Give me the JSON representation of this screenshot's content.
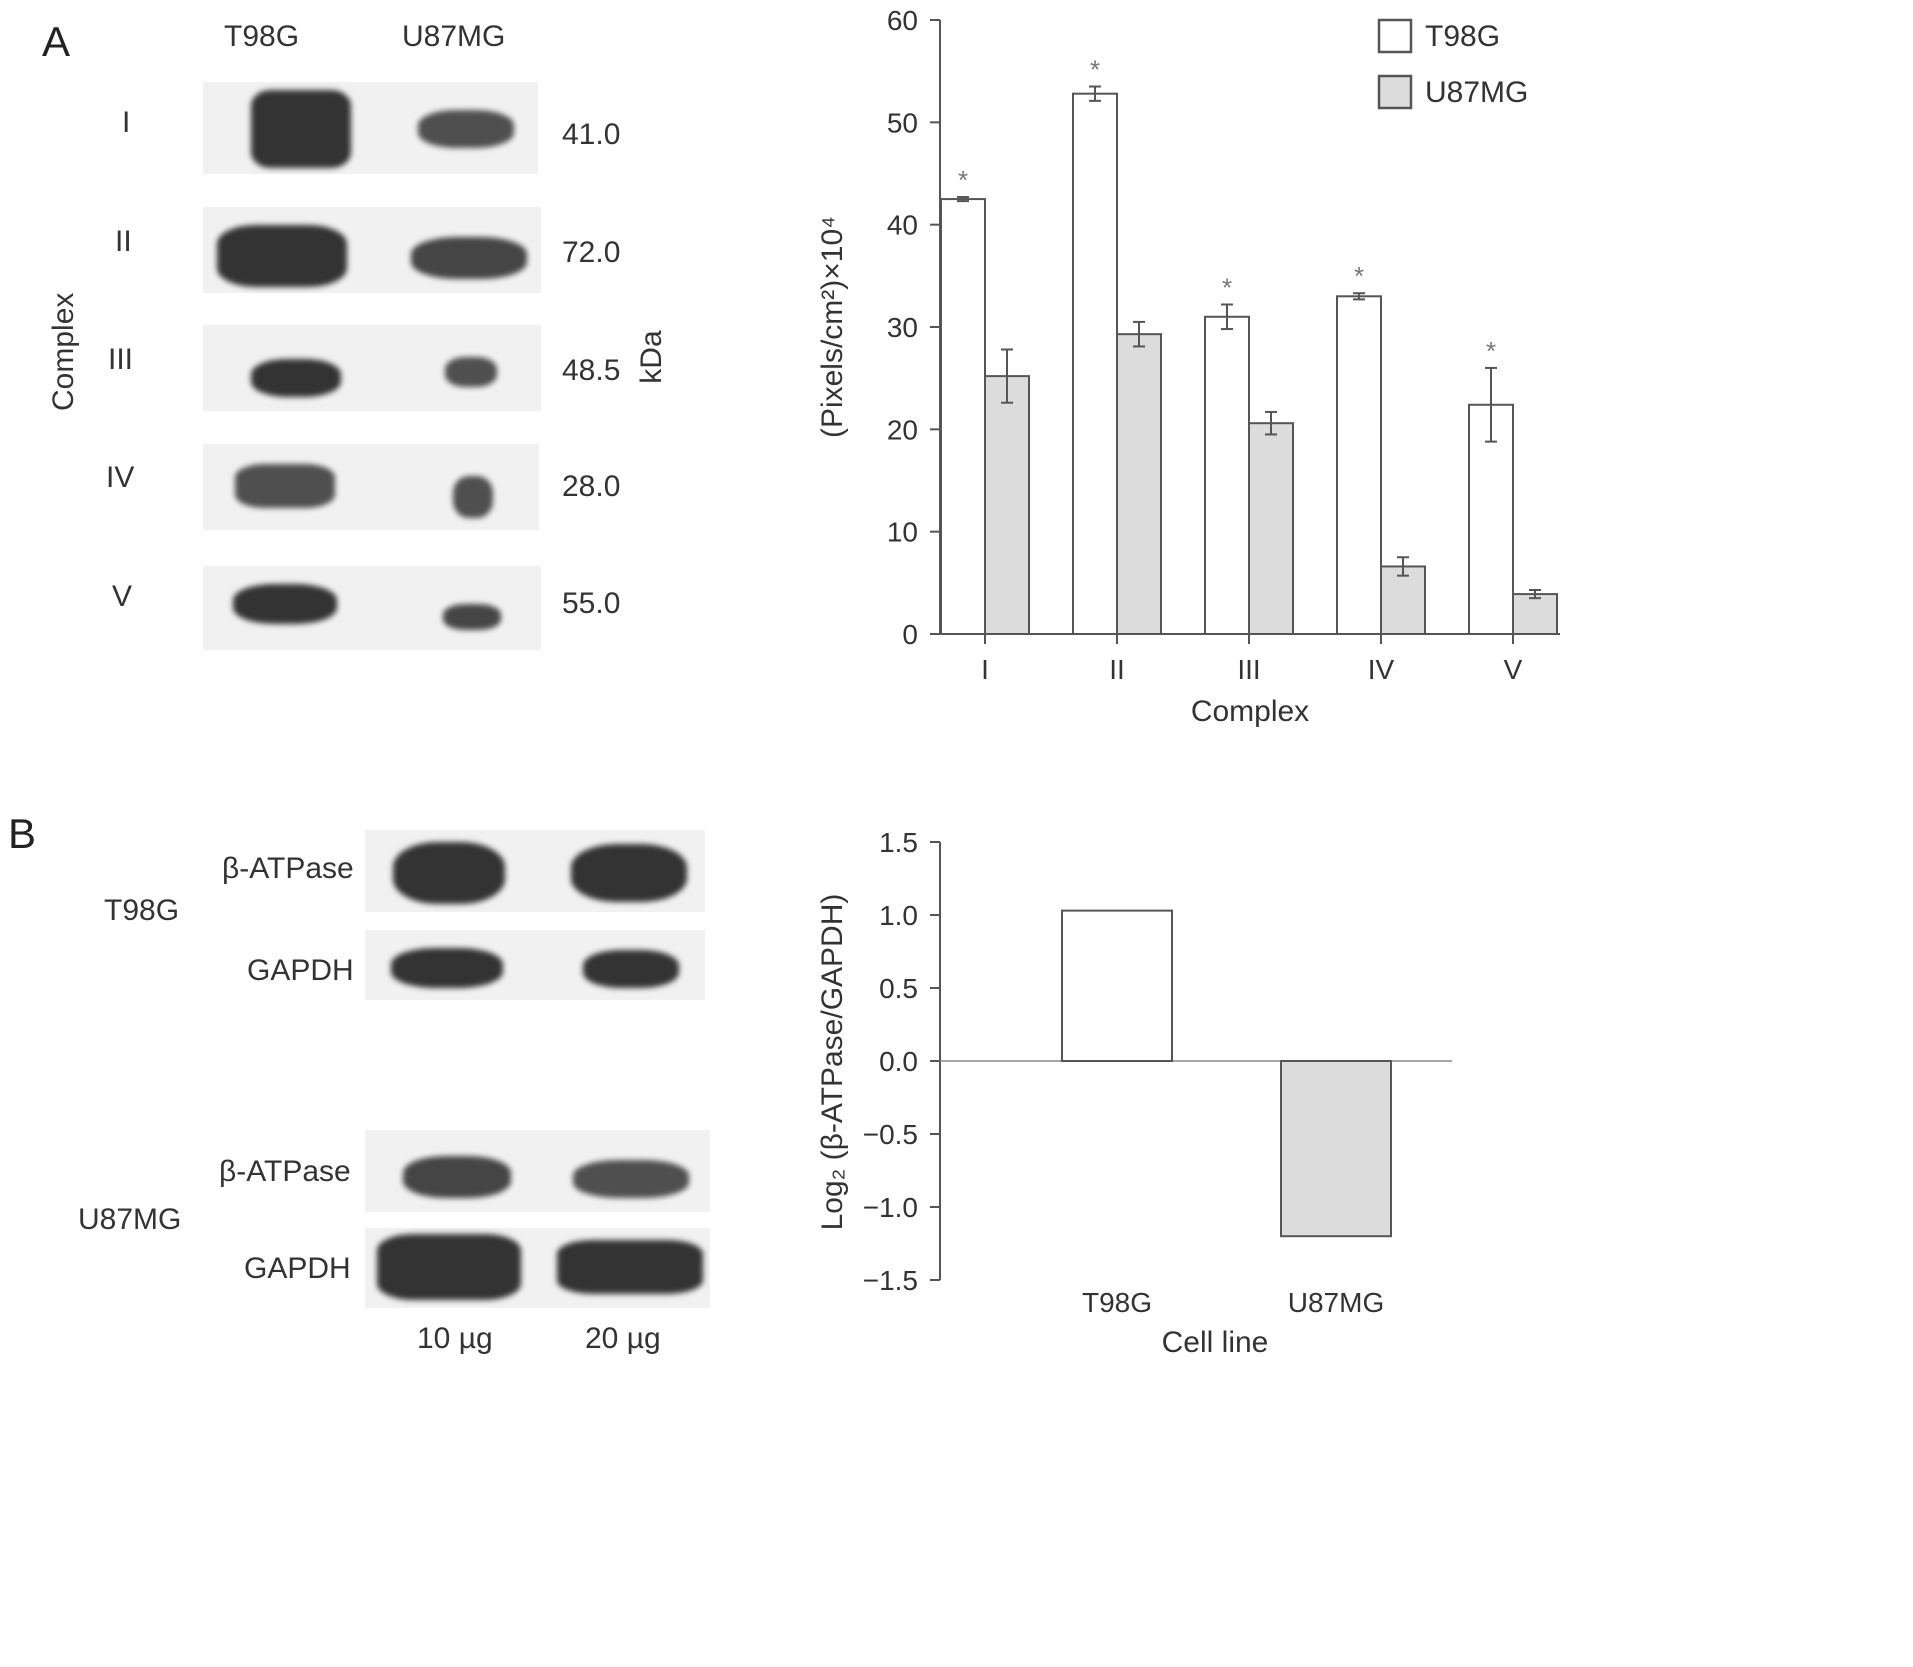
{
  "panels": {
    "a": "A",
    "b": "B"
  },
  "blot_a": {
    "columns": [
      "T98G",
      "U87MG"
    ],
    "rows": [
      "I",
      "II",
      "III",
      "IV",
      "V"
    ],
    "kda_values": [
      "41.0",
      "72.0",
      "48.5",
      "28.0",
      "55.0"
    ],
    "ylabel": "Complex",
    "unit": "kDa"
  },
  "blot_b": {
    "groups": [
      {
        "cell": "T98G",
        "bands": [
          "β-ATPase",
          "GAPDH"
        ]
      },
      {
        "cell": "U87MG",
        "bands": [
          "β-ATPase",
          "GAPDH"
        ]
      }
    ],
    "amounts": [
      "10 µg",
      "20 µg"
    ]
  },
  "chart_data": [
    {
      "type": "bar",
      "title": "",
      "categories": [
        "I",
        "II",
        "III",
        "IV",
        "V"
      ],
      "series": [
        {
          "name": "T98G",
          "values": [
            42.5,
            52.8,
            31.0,
            33.0,
            22.4
          ],
          "errors": [
            0.2,
            0.7,
            1.2,
            0.3,
            3.6
          ],
          "color": "#ffffff"
        },
        {
          "name": "U87MG",
          "values": [
            25.2,
            29.3,
            20.6,
            6.6,
            3.9
          ],
          "errors": [
            2.6,
            1.2,
            1.1,
            0.9,
            0.4
          ],
          "color": "#dcdcdc"
        }
      ],
      "significance": [
        "*",
        "*",
        "*",
        "*",
        "*"
      ],
      "xlabel": "Complex",
      "ylabel": "(Pixels/cm²)×10⁴",
      "ylim": [
        0,
        60
      ],
      "yticks": [
        "0",
        "10",
        "20",
        "30",
        "40",
        "50",
        "60"
      ],
      "legend": "top-right"
    },
    {
      "type": "bar",
      "title": "",
      "categories": [
        "T98G",
        "U87MG"
      ],
      "values": [
        1.03,
        -1.2
      ],
      "colors": [
        "#ffffff",
        "#dcdcdc"
      ],
      "xlabel": "Cell line",
      "ylabel": "Log₂ (β-ATPase/GAPDH)",
      "ylim": [
        -1.5,
        1.5
      ],
      "yticks": [
        "1.5",
        "1.0",
        "0.5",
        "0.0",
        "−0.5",
        "−1.0",
        "−1.5"
      ]
    }
  ]
}
